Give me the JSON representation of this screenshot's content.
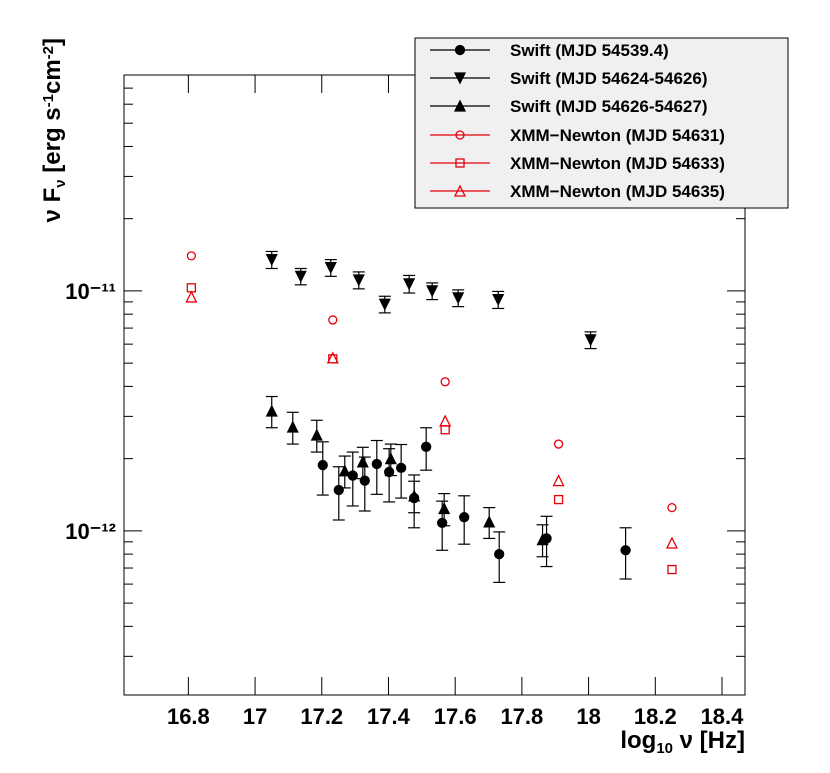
{
  "chart_data": {
    "type": "scatter",
    "log_y": true,
    "legend": "top-right",
    "xlabel_parts": [
      "log",
      "10",
      " ν [Hz]"
    ],
    "ylabel_parts": [
      "ν F",
      "ν",
      " [erg s",
      "-1",
      "cm",
      "-2",
      "]"
    ],
    "xlim": [
      16.607,
      18.469
    ],
    "xticks": [
      16.8,
      17,
      17.2,
      17.4,
      17.6,
      17.8,
      18,
      18.2,
      18.4
    ],
    "ylim": [
      2.07e-13,
      7.94e-11
    ],
    "yticks": [
      {
        "value": 1e-12,
        "label": "10⁻¹²"
      },
      {
        "value": 1e-11,
        "label": "10⁻¹¹"
      }
    ],
    "yminorticks": [
      3e-13,
      4e-13,
      5e-13,
      6e-13,
      7e-13,
      8e-13,
      9e-13,
      2e-12,
      3e-12,
      4e-12,
      5e-12,
      6e-12,
      7e-12,
      8e-12,
      9e-12,
      2e-11,
      3e-11,
      4e-11,
      5e-11,
      6e-11,
      7e-11
    ],
    "series": [
      {
        "name": "Swift (MJD 54539.4)",
        "color": "#000000",
        "marker": "circle-filled",
        "x": [
          17.203,
          17.251,
          17.293,
          17.329,
          17.365,
          17.402,
          17.438,
          17.477,
          17.513,
          17.561,
          17.627,
          17.732,
          17.874,
          18.111
        ],
        "values": [
          1.88e-12,
          1.48e-12,
          1.7e-12,
          1.62e-12,
          1.9e-12,
          1.76e-12,
          1.83e-12,
          1.37e-12,
          2.24e-12,
          1.08e-12,
          1.14e-12,
          8e-13,
          9.3e-13,
          8.3e-13
        ],
        "errors": [
          4.7e-13,
          3.7e-13,
          4.3e-13,
          4.1e-13,
          4.8e-13,
          4.4e-13,
          4.6e-13,
          3.4e-13,
          4.5e-13,
          2.5e-13,
          2.6e-13,
          1.9e-13,
          2.2e-13,
          2e-13
        ]
      },
      {
        "name": "Swift (MJD 54624-54626)",
        "color": "#000000",
        "marker": "triangle-down-filled",
        "x": [
          17.05,
          17.137,
          17.227,
          17.311,
          17.389,
          17.462,
          17.531,
          17.609,
          17.729,
          18.006
        ],
        "values": [
          1.35e-11,
          1.15e-11,
          1.25e-11,
          1.11e-11,
          8.8e-12,
          1.07e-11,
          1e-11,
          9.35e-12,
          9.2e-12,
          6.25e-12
        ],
        "errors": [
          1.1e-12,
          9e-13,
          1e-12,
          9e-13,
          7e-13,
          9e-13,
          8e-13,
          7.5e-13,
          7.5e-13,
          5e-13
        ]
      },
      {
        "name": "Swift (MJD 54626-54627)",
        "color": "#000000",
        "marker": "triangle-up-filled",
        "x": [
          17.05,
          17.113,
          17.185,
          17.269,
          17.323,
          17.407,
          17.477,
          17.567,
          17.702,
          17.862
        ],
        "values": [
          3.16e-12,
          2.71e-12,
          2.51e-12,
          1.78e-12,
          1.94e-12,
          2e-12,
          1.4e-12,
          1.24e-12,
          1.09e-12,
          9.2e-13
        ],
        "errors": [
          4.7e-13,
          4.1e-13,
          3.8e-13,
          2.7e-13,
          2.9e-13,
          3e-13,
          2.1e-13,
          1.9e-13,
          1.6e-13,
          1.4e-13
        ]
      },
      {
        "name": "XMM−Newton (MJD 54631)",
        "color": "#e8000b",
        "marker": "circle-open",
        "x": [
          16.809,
          17.233,
          17.57,
          17.91,
          18.25
        ],
        "values": [
          1.4e-11,
          7.57e-12,
          4.18e-12,
          2.3e-12,
          1.25e-12
        ]
      },
      {
        "name": "XMM−Newton (MJD 54633)",
        "color": "#e8000b",
        "marker": "square-open",
        "x": [
          16.809,
          17.233,
          17.57,
          17.91,
          18.25
        ],
        "values": [
          1.03e-11,
          5.21e-12,
          2.64e-12,
          1.35e-12,
          6.9e-13
        ]
      },
      {
        "name": "XMM−Newton (MJD 54635)",
        "color": "#e8000b",
        "marker": "triangle-up-open",
        "x": [
          16.809,
          17.233,
          17.57,
          17.91,
          18.25
        ],
        "values": [
          9.44e-12,
          5.26e-12,
          2.87e-12,
          1.62e-12,
          8.9e-13
        ]
      }
    ]
  }
}
